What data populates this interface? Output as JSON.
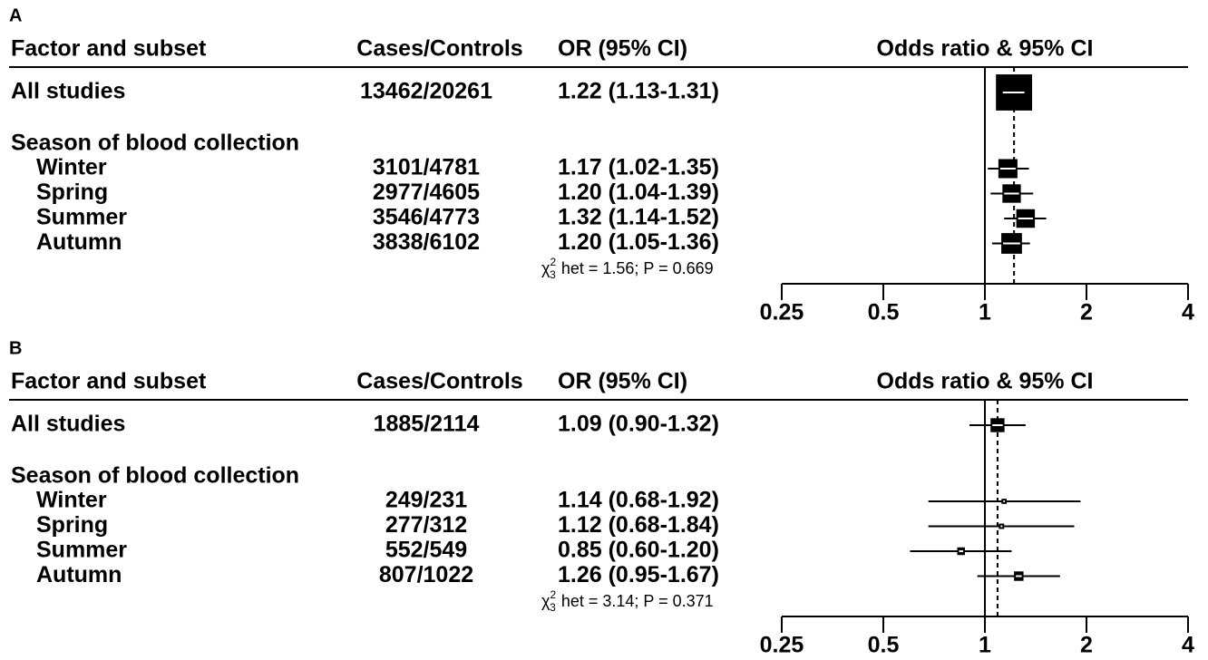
{
  "chart_data": [
    {
      "type": "forest",
      "panel": "A",
      "headers": [
        "Factor and subset",
        "Cases/Controls",
        "OR (95% CI)",
        "Odds ratio & 95% CI"
      ],
      "overall": {
        "label": "All studies",
        "cases_controls": "13462/20261",
        "or_label": "1.22 (1.13-1.31)",
        "or": 1.22,
        "lo": 1.13,
        "hi": 1.31
      },
      "group": "Season of blood collection",
      "rows": [
        {
          "label": "Winter",
          "cases_controls": "3101/4781",
          "or_label": "1.17 (1.02-1.35)",
          "or": 1.17,
          "lo": 1.02,
          "hi": 1.35
        },
        {
          "label": "Spring",
          "cases_controls": "2977/4605",
          "or_label": "1.20 (1.04-1.39)",
          "or": 1.2,
          "lo": 1.04,
          "hi": 1.39
        },
        {
          "label": "Summer",
          "cases_controls": "3546/4773",
          "or_label": "1.32 (1.14-1.52)",
          "or": 1.32,
          "lo": 1.14,
          "hi": 1.52
        },
        {
          "label": "Autumn",
          "cases_controls": "3838/6102",
          "or_label": "1.20 (1.05-1.36)",
          "or": 1.2,
          "lo": 1.05,
          "hi": 1.36
        }
      ],
      "het": {
        "symbol": "χ",
        "sup": "2",
        "sub": "3",
        "text": "het = 1.56; P = 0.669"
      },
      "xlim": [
        0.25,
        4
      ],
      "xticks": [
        0.25,
        0.5,
        1,
        2,
        4
      ],
      "log_x": true,
      "ref_line": 1
    },
    {
      "type": "forest",
      "panel": "B",
      "headers": [
        "Factor and subset",
        "Cases/Controls",
        "OR (95% CI)",
        "Odds ratio & 95% CI"
      ],
      "overall": {
        "label": "All studies",
        "cases_controls": "1885/2114",
        "or_label": "1.09 (0.90-1.32)",
        "or": 1.09,
        "lo": 0.9,
        "hi": 1.32
      },
      "group": "Season of blood collection",
      "rows": [
        {
          "label": "Winter",
          "cases_controls": "249/231",
          "or_label": "1.14 (0.68-1.92)",
          "or": 1.14,
          "lo": 0.68,
          "hi": 1.92
        },
        {
          "label": "Spring",
          "cases_controls": "277/312",
          "or_label": "1.12 (0.68-1.84)",
          "or": 1.12,
          "lo": 0.68,
          "hi": 1.84
        },
        {
          "label": "Summer",
          "cases_controls": "552/549",
          "or_label": "0.85 (0.60-1.20)",
          "or": 0.85,
          "lo": 0.6,
          "hi": 1.2
        },
        {
          "label": "Autumn",
          "cases_controls": "807/1022",
          "or_label": "1.26 (0.95-1.67)",
          "or": 1.26,
          "lo": 0.95,
          "hi": 1.67
        }
      ],
      "het": {
        "symbol": "χ",
        "sup": "2",
        "sub": "3",
        "text": "het = 3.14; P = 0.371"
      },
      "xlim": [
        0.25,
        4
      ],
      "xticks": [
        0.25,
        0.5,
        1,
        2,
        4
      ],
      "log_x": true,
      "ref_line": 1
    }
  ]
}
